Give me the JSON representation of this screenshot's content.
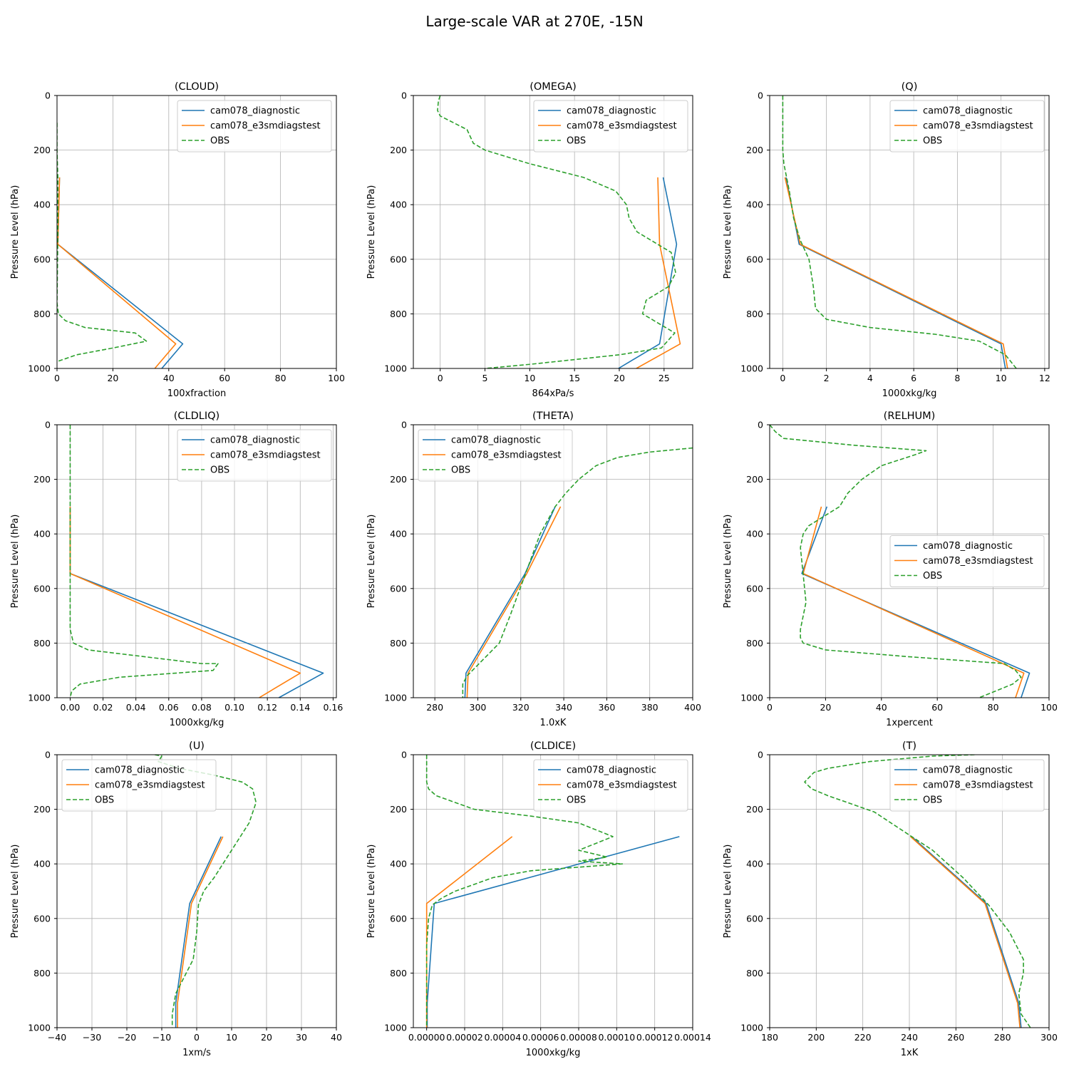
{
  "figure": {
    "title": "Large-scale VAR at 270E, -15N",
    "ylabel": "Pressure Level (hPa)",
    "colors": {
      "cam078_diagnostic": "#1f77b4",
      "cam078_e3smdiagstest": "#ff7f0e",
      "OBS": "#2ca02c",
      "grid": "#b0b0b0"
    }
  },
  "chart_data": [
    {
      "type": "line",
      "title": "(CLOUD)",
      "xlabel": "100xfraction",
      "ylabel": "Pressure Level (hPa)",
      "xlim": [
        0,
        100
      ],
      "ylim": [
        1000,
        0
      ],
      "xticks": [
        0,
        20,
        40,
        60,
        80,
        100
      ],
      "xtick_labels": [
        "0",
        "20",
        "40",
        "60",
        "80",
        "100"
      ],
      "yticks": [
        0,
        200,
        400,
        600,
        800,
        1000
      ],
      "ytick_labels": [
        "0",
        "200",
        "400",
        "600",
        "800",
        "1000"
      ],
      "grid": true,
      "legend": "upper right",
      "series": [
        {
          "name": "cam078_diagnostic",
          "style": "solid",
          "x": [
            0.9,
            0.3,
            45.0,
            37.5
          ],
          "y": [
            300,
            545,
            910,
            1000
          ]
        },
        {
          "name": "cam078_e3smdiagstest",
          "style": "solid",
          "x": [
            0.9,
            0.3,
            42.5,
            35.0
          ],
          "y": [
            300,
            545,
            910,
            1000
          ]
        },
        {
          "name": "OBS",
          "style": "dashed",
          "x": [
            0,
            0,
            0.3,
            0.3,
            0.3,
            0.2,
            0,
            0.5,
            3,
            10,
            28,
            32,
            20,
            7,
            0
          ],
          "y": [
            100,
            200,
            300,
            400,
            500,
            600,
            760,
            800,
            825,
            850,
            870,
            900,
            925,
            950,
            975
          ]
        }
      ]
    },
    {
      "type": "line",
      "title": "(OMEGA)",
      "xlabel": "864xPa/s",
      "ylabel": "Pressure Level (hPa)",
      "xlim": [
        -3,
        28.2
      ],
      "ylim": [
        1000,
        0
      ],
      "xticks": [
        0,
        5,
        10,
        15,
        20,
        25
      ],
      "xtick_labels": [
        "0",
        "5",
        "10",
        "15",
        "20",
        "25"
      ],
      "yticks": [
        0,
        200,
        400,
        600,
        800,
        1000
      ],
      "ytick_labels": [
        "0",
        "200",
        "400",
        "600",
        "800",
        "1000"
      ],
      "grid": true,
      "legend": "upper right",
      "series": [
        {
          "name": "cam078_diagnostic",
          "style": "solid",
          "x": [
            24.9,
            26.4,
            24.5,
            19.9
          ],
          "y": [
            300,
            545,
            910,
            1000
          ]
        },
        {
          "name": "cam078_e3smdiagstest",
          "style": "solid",
          "x": [
            24.3,
            24.5,
            26.8,
            21.9
          ],
          "y": [
            300,
            545,
            910,
            1000
          ]
        },
        {
          "name": "OBS",
          "style": "dashed",
          "x": [
            0,
            -0.2,
            -0.3,
            0,
            3,
            3.7,
            5,
            10,
            16,
            19.6,
            20.8,
            21.1,
            22,
            25.8,
            26.3,
            25.5,
            23,
            22.6,
            26.2,
            24.7,
            20,
            10,
            5
          ],
          "y": [
            0,
            20,
            55,
            75,
            125,
            175,
            200,
            250,
            300,
            350,
            400,
            450,
            500,
            575,
            650,
            700,
            750,
            800,
            870,
            925,
            950,
            985,
            1000
          ]
        }
      ]
    },
    {
      "type": "line",
      "title": "(Q)",
      "xlabel": "1000xkg/kg",
      "ylabel": "Pressure Level (hPa)",
      "xlim": [
        -0.6,
        12.2
      ],
      "ylim": [
        1000,
        0
      ],
      "xticks": [
        0,
        2,
        4,
        6,
        8,
        10,
        12
      ],
      "xtick_labels": [
        "0",
        "2",
        "4",
        "6",
        "8",
        "10",
        "12"
      ],
      "yticks": [
        0,
        200,
        400,
        600,
        800,
        1000
      ],
      "ytick_labels": [
        "0",
        "200",
        "400",
        "600",
        "800",
        "1000"
      ],
      "grid": true,
      "legend": "upper right",
      "series": [
        {
          "name": "cam078_diagnostic",
          "style": "solid",
          "x": [
            0.15,
            0.75,
            10.0,
            10.2
          ],
          "y": [
            300,
            545,
            910,
            1000
          ]
        },
        {
          "name": "cam078_e3smdiagstest",
          "style": "solid",
          "x": [
            0.1,
            0.8,
            10.1,
            10.3
          ],
          "y": [
            300,
            545,
            910,
            1000
          ]
        },
        {
          "name": "OBS",
          "style": "dashed",
          "x": [
            0,
            0,
            0,
            0.05,
            0.3,
            0.5,
            0.8,
            1.2,
            1.3,
            1.4,
            1.5,
            2.0,
            4.0,
            7.0,
            9.0,
            10.2,
            10.7
          ],
          "y": [
            0,
            100,
            200,
            250,
            350,
            450,
            530,
            600,
            650,
            700,
            780,
            820,
            850,
            875,
            900,
            950,
            1000
          ]
        }
      ]
    },
    {
      "type": "line",
      "title": "(CLDLIQ)",
      "xlabel": "1000xkg/kg",
      "ylabel": "Pressure Level (hPa)",
      "xlim": [
        -0.008,
        0.162
      ],
      "ylim": [
        1000,
        0
      ],
      "xticks": [
        0,
        0.02,
        0.04,
        0.06,
        0.08,
        0.1,
        0.12,
        0.14,
        0.16
      ],
      "xtick_labels": [
        "0.00",
        "0.02",
        "0.04",
        "0.06",
        "0.08",
        "0.10",
        "0.12",
        "0.14",
        "0.16"
      ],
      "yticks": [
        0,
        200,
        400,
        600,
        800,
        1000
      ],
      "ytick_labels": [
        "0",
        "200",
        "400",
        "600",
        "800",
        "1000"
      ],
      "grid": true,
      "legend": "upper right",
      "series": [
        {
          "name": "cam078_diagnostic",
          "style": "solid",
          "x": [
            0,
            0,
            0.154,
            0.127
          ],
          "y": [
            300,
            545,
            910,
            1000
          ]
        },
        {
          "name": "cam078_e3smdiagstest",
          "style": "solid",
          "x": [
            0,
            0,
            0.14,
            0.115
          ],
          "y": [
            300,
            545,
            910,
            1000
          ]
        },
        {
          "name": "OBS",
          "style": "dashed",
          "x": [
            0,
            0,
            0,
            0,
            0,
            0.002,
            0.011,
            0.08,
            0.09,
            0.087,
            0.03,
            0.006,
            0.001,
            0
          ],
          "y": [
            0,
            200,
            400,
            600,
            750,
            800,
            825,
            875,
            875,
            900,
            925,
            950,
            975,
            1000
          ]
        }
      ]
    },
    {
      "type": "line",
      "title": "(THETA)",
      "xlabel": "1.0xK",
      "ylabel": "Pressure Level (hPa)",
      "xlim": [
        270,
        400
      ],
      "ylim": [
        1000,
        0
      ],
      "xticks": [
        280,
        300,
        320,
        340,
        360,
        380,
        400
      ],
      "xtick_labels": [
        "280",
        "300",
        "320",
        "340",
        "360",
        "380",
        "400"
      ],
      "yticks": [
        0,
        200,
        400,
        600,
        800,
        1000
      ],
      "ytick_labels": [
        "0",
        "200",
        "400",
        "600",
        "800",
        "1000"
      ],
      "grid": true,
      "legend": "upper left",
      "series": [
        {
          "name": "cam078_diagnostic",
          "style": "solid",
          "x": [
            336,
            322,
            294.5,
            294
          ],
          "y": [
            300,
            545,
            910,
            1000
          ]
        },
        {
          "name": "cam078_e3smdiagstest",
          "style": "solid",
          "x": [
            338.5,
            322.8,
            295.5,
            295
          ],
          "y": [
            300,
            545,
            910,
            1000
          ]
        },
        {
          "name": "OBS",
          "style": "dashed",
          "x": [
            400,
            380,
            365,
            355,
            347,
            341,
            336,
            329,
            322,
            315,
            310,
            300,
            295,
            293,
            293
          ],
          "y": [
            85,
            100,
            120,
            150,
            200,
            250,
            300,
            400,
            550,
            700,
            800,
            880,
            920,
            950,
            1000
          ]
        }
      ]
    },
    {
      "type": "line",
      "title": "(RELHUM)",
      "xlabel": "1xpercent",
      "ylabel": "Pressure Level (hPa)",
      "xlim": [
        0,
        100
      ],
      "ylim": [
        1000,
        0
      ],
      "xticks": [
        0,
        20,
        40,
        60,
        80,
        100
      ],
      "xtick_labels": [
        "0",
        "20",
        "40",
        "60",
        "80",
        "100"
      ],
      "yticks": [
        0,
        200,
        400,
        600,
        800,
        1000
      ],
      "ytick_labels": [
        "0",
        "200",
        "400",
        "600",
        "800",
        "1000"
      ],
      "grid": true,
      "legend": "center right",
      "series": [
        {
          "name": "cam078_diagnostic",
          "style": "solid",
          "x": [
            20.5,
            11.5,
            93.0,
            90.0
          ],
          "y": [
            300,
            545,
            910,
            1000
          ]
        },
        {
          "name": "cam078_e3smdiagstest",
          "style": "solid",
          "x": [
            18.5,
            12.0,
            91.0,
            88.0
          ],
          "y": [
            300,
            545,
            910,
            1000
          ]
        },
        {
          "name": "OBS",
          "style": "dashed",
          "x": [
            0,
            2,
            5,
            30,
            56,
            52,
            40,
            33,
            28,
            25,
            14,
            12,
            11,
            12,
            13,
            11,
            11,
            12,
            20,
            50,
            84,
            88,
            90,
            87,
            75
          ],
          "y": [
            0,
            25,
            50,
            75,
            95,
            110,
            150,
            200,
            250,
            300,
            370,
            400,
            450,
            550,
            650,
            750,
            780,
            800,
            825,
            850,
            875,
            900,
            925,
            950,
            1000
          ]
        }
      ]
    },
    {
      "type": "line",
      "title": "(U)",
      "xlabel": "1xm/s",
      "ylabel": "Pressure Level (hPa)",
      "xlim": [
        -40,
        40
      ],
      "ylim": [
        1000,
        0
      ],
      "xticks": [
        -40,
        -30,
        -20,
        -10,
        0,
        10,
        20,
        30,
        40
      ],
      "xtick_labels": [
        "−40",
        "−30",
        "−20",
        "−10",
        "0",
        "10",
        "20",
        "30",
        "40"
      ],
      "yticks": [
        0,
        200,
        400,
        600,
        800,
        1000
      ],
      "ytick_labels": [
        "0",
        "200",
        "400",
        "600",
        "800",
        "1000"
      ],
      "grid": true,
      "legend": "upper left",
      "series": [
        {
          "name": "cam078_diagnostic",
          "style": "solid",
          "x": [
            7,
            -2,
            -6,
            -6
          ],
          "y": [
            300,
            545,
            910,
            1000
          ]
        },
        {
          "name": "cam078_e3smdiagstest",
          "style": "solid",
          "x": [
            7.5,
            -1.5,
            -5.5,
            -5.5
          ],
          "y": [
            300,
            545,
            910,
            1000
          ]
        },
        {
          "name": "OBS",
          "style": "dashed",
          "x": [
            -12,
            -10,
            -11,
            -5,
            5,
            13,
            16,
            17,
            15,
            10,
            5,
            2,
            0.5,
            0,
            -1,
            -3,
            -6,
            -7,
            -7
          ],
          "y": [
            0,
            5,
            25,
            50,
            75,
            100,
            125,
            175,
            250,
            350,
            450,
            500,
            550,
            650,
            750,
            800,
            875,
            950,
            1000
          ]
        }
      ]
    },
    {
      "type": "line",
      "title": "(CLDICE)",
      "xlabel": "1000xkg/kg",
      "ylabel": "Pressure Level (hPa)",
      "xlim": [
        -7e-06,
        0.00014
      ],
      "ylim": [
        1000,
        0
      ],
      "xticks": [
        0,
        2e-05,
        4e-05,
        6e-05,
        8e-05,
        0.0001,
        0.00012,
        0.00014
      ],
      "xtick_labels": [
        "0.00000",
        "0.00002",
        "0.00004",
        "0.00006",
        "0.00008",
        "0.00010",
        "0.00012",
        "0.00014"
      ],
      "yticks": [
        0,
        200,
        400,
        600,
        800,
        1000
      ],
      "ytick_labels": [
        "0",
        "200",
        "400",
        "600",
        "800",
        "1000"
      ],
      "grid": true,
      "legend": "upper right",
      "series": [
        {
          "name": "cam078_diagnostic",
          "style": "solid",
          "x": [
            0.000133,
            4e-06,
            3e-07,
            3e-07
          ],
          "y": [
            300,
            545,
            910,
            1000
          ]
        },
        {
          "name": "cam078_e3smdiagstest",
          "style": "solid",
          "x": [
            4.5e-05,
            0,
            0,
            0
          ],
          "y": [
            300,
            545,
            910,
            1000
          ]
        },
        {
          "name": "OBS",
          "style": "dashed",
          "x": [
            0,
            0,
            1e-06,
            5e-06,
            2.5e-05,
            5.5e-05,
            8e-05,
            9.8e-05,
            8e-05,
            9.5e-05,
            8e-05,
            0.000103,
            5.5e-05,
            3.5e-05,
            1.5e-05,
            8e-06,
            3e-06,
            1e-06,
            0,
            0,
            0
          ],
          "y": [
            0,
            100,
            125,
            150,
            200,
            225,
            250,
            300,
            350,
            375,
            390,
            400,
            425,
            450,
            500,
            525,
            550,
            600,
            700,
            900,
            1000
          ]
        }
      ]
    },
    {
      "type": "line",
      "title": "(T)",
      "xlabel": "1xK",
      "ylabel": "Pressure Level (hPa)",
      "xlim": [
        180,
        300
      ],
      "ylim": [
        1000,
        0
      ],
      "xticks": [
        180,
        200,
        220,
        240,
        260,
        280,
        300
      ],
      "xtick_labels": [
        "180",
        "200",
        "220",
        "240",
        "260",
        "280",
        "300"
      ],
      "yticks": [
        0,
        200,
        400,
        600,
        800,
        1000
      ],
      "ytick_labels": [
        "0",
        "200",
        "400",
        "600",
        "800",
        "1000"
      ],
      "grid": true,
      "legend": "upper right",
      "series": [
        {
          "name": "cam078_diagnostic",
          "style": "solid",
          "x": [
            241,
            273,
            287,
            288
          ],
          "y": [
            300,
            545,
            910,
            1000
          ]
        },
        {
          "name": "cam078_e3smdiagstest",
          "style": "solid",
          "x": [
            240.5,
            272.5,
            286.5,
            287.5
          ],
          "y": [
            300,
            545,
            910,
            1000
          ]
        },
        {
          "name": "OBS",
          "style": "dashed",
          "x": [
            268,
            250,
            223,
            205,
            199,
            195,
            198,
            205,
            225,
            241,
            250,
            263,
            274,
            283,
            289,
            289,
            287,
            288,
            292
          ],
          "y": [
            0,
            5,
            25,
            50,
            65,
            100,
            125,
            150,
            210,
            300,
            350,
            450,
            550,
            650,
            750,
            800,
            875,
            950,
            1000
          ]
        }
      ]
    }
  ]
}
